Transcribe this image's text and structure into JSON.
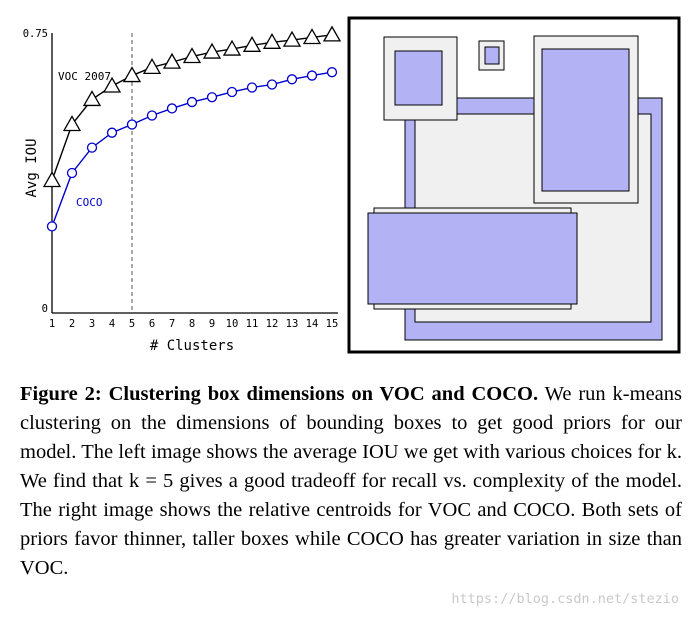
{
  "chart_data": [
    {
      "type": "line",
      "xlabel": "# Clusters",
      "ylabel": "Avg IOU",
      "categories": [
        1,
        2,
        3,
        4,
        5,
        6,
        7,
        8,
        9,
        10,
        11,
        12,
        13,
        14,
        15
      ],
      "x_tick_labels": [
        "1",
        "2",
        "3",
        "4",
        "5",
        "6",
        "7",
        "8",
        "9",
        "10",
        "11",
        "12",
        "13",
        "14",
        "15"
      ],
      "y_tick_labels": [
        "0",
        "0.75"
      ],
      "ylim": [
        0,
        0.75
      ],
      "vline": 5,
      "series": [
        {
          "name": "VOC 2007",
          "marker": "triangle",
          "color": "#000000",
          "values": [
            0.355,
            0.505,
            0.572,
            0.608,
            0.636,
            0.658,
            0.672,
            0.687,
            0.699,
            0.707,
            0.717,
            0.725,
            0.731,
            0.738,
            0.745
          ]
        },
        {
          "name": "COCO",
          "marker": "circle",
          "color": "#0000cc",
          "values": [
            0.232,
            0.375,
            0.443,
            0.483,
            0.505,
            0.529,
            0.548,
            0.565,
            0.578,
            0.592,
            0.604,
            0.612,
            0.626,
            0.636,
            0.645
          ]
        }
      ],
      "grid": false
    },
    {
      "type": "centroid-boxes",
      "sets": [
        "VOC",
        "COCO"
      ],
      "colors": {
        "VOC": "#f0f0f0",
        "COCO": "#b2b2f5",
        "edge": "#000000"
      }
    }
  ],
  "caption": {
    "label": "Figure 2:",
    "title": "Clustering box dimensions on VOC and COCO.",
    "body": "We run k-means clustering on the dimensions of bounding boxes to get good priors for our model. The left image shows the average IOU we get with various choices for k. We find that k = 5 gives a good tradeoff for recall vs. complexity of the model. The right image shows the relative centroids for VOC and COCO. Both sets of priors favor thinner, taller boxes while COCO has greater variation in size than VOC."
  },
  "watermark": "https://blog.csdn.net/stezio"
}
